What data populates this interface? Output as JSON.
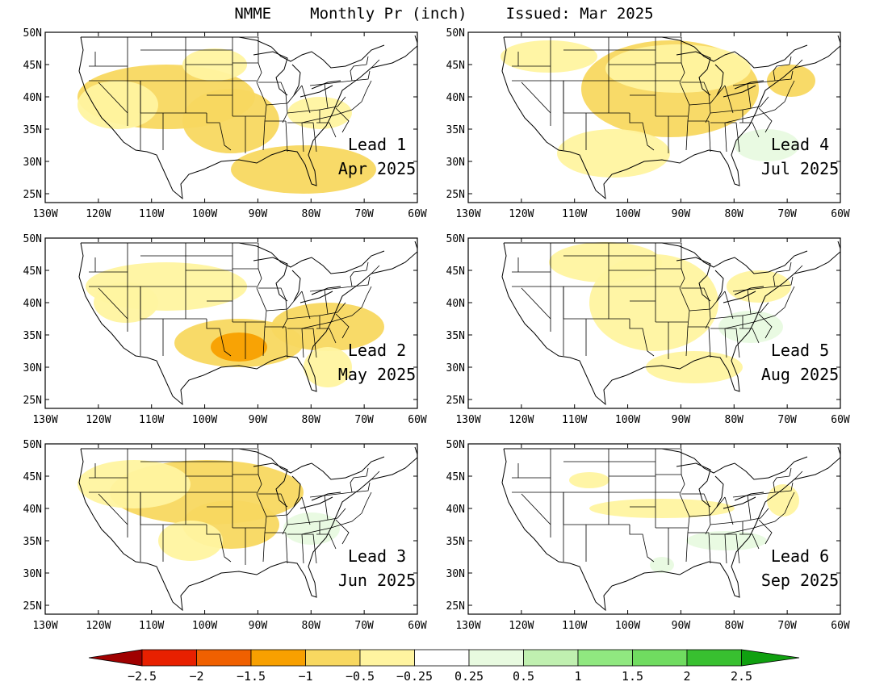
{
  "title": {
    "model": "NMME",
    "variable": "Monthly Pr (inch)",
    "issued": "Issued: Mar 2025"
  },
  "axes": {
    "lat_labels": [
      "50N",
      "45N",
      "40N",
      "35N",
      "30N",
      "25N"
    ],
    "lon_labels": [
      "130W",
      "120W",
      "110W",
      "100W",
      "90W",
      "80W",
      "70W",
      "60W"
    ]
  },
  "panels": [
    {
      "lead": "Lead 1",
      "month": "Apr 2025"
    },
    {
      "lead": "Lead 4",
      "month": "Jul 2025"
    },
    {
      "lead": "Lead 2",
      "month": "May 2025"
    },
    {
      "lead": "Lead 5",
      "month": "Aug 2025"
    },
    {
      "lead": "Lead 3",
      "month": "Jun 2025"
    },
    {
      "lead": "Lead 6",
      "month": "Sep 2025"
    }
  ],
  "colorbar": {
    "labels": [
      "−2.5",
      "−2",
      "−1.5",
      "−1",
      "−0.5",
      "−0.25",
      "0.25",
      "0.5",
      "1",
      "1.5",
      "2",
      "2.5"
    ],
    "colors": [
      "#a00000",
      "#e82000",
      "#f06000",
      "#f8a000",
      "#f8d860",
      "#fff4a0",
      "#ffffff",
      "#e8fae0",
      "#c0f0b0",
      "#90e880",
      "#70dc60",
      "#38c030",
      "#10a010"
    ]
  }
}
